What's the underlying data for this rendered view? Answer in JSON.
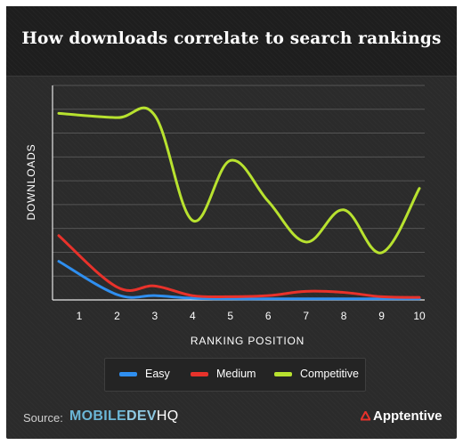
{
  "header": {
    "title": "How downloads correlate to search rankings"
  },
  "chart_data": {
    "type": "line",
    "title": "How downloads correlate to search rankings",
    "xlabel": "RANKING POSITION",
    "ylabel": "DOWNLOADS",
    "x": [
      1,
      2,
      3,
      4,
      5,
      6,
      7,
      8,
      9,
      10
    ],
    "ylim": [
      0,
      10
    ],
    "y_gridlines": 9,
    "grid": true,
    "legend_position": "bottom",
    "series": [
      {
        "name": "Easy",
        "color": "#2f8ff0",
        "values": [
          1.8,
          0.25,
          0.2,
          0.08,
          0.05,
          0.05,
          0.05,
          0.05,
          0.05,
          0.05
        ]
      },
      {
        "name": "Medium",
        "color": "#e8322b",
        "values": [
          3.0,
          0.6,
          0.65,
          0.2,
          0.15,
          0.2,
          0.4,
          0.35,
          0.15,
          0.12
        ]
      },
      {
        "name": "Competitive",
        "color": "#b8e22f",
        "values": [
          8.7,
          8.5,
          8.6,
          3.7,
          6.5,
          4.6,
          2.7,
          4.2,
          2.2,
          5.2
        ]
      }
    ]
  },
  "footer": {
    "source_label": "Source:",
    "brand_left_part1": "MOBILE",
    "brand_left_part2": "DEV",
    "brand_left_part3": "HQ",
    "brand_right": "Apptentive"
  },
  "colors": {
    "background": "#2b2b2b",
    "title_background": "#1e1e1e",
    "grid": "#555555",
    "brand_blue": "#6bb6d6"
  }
}
